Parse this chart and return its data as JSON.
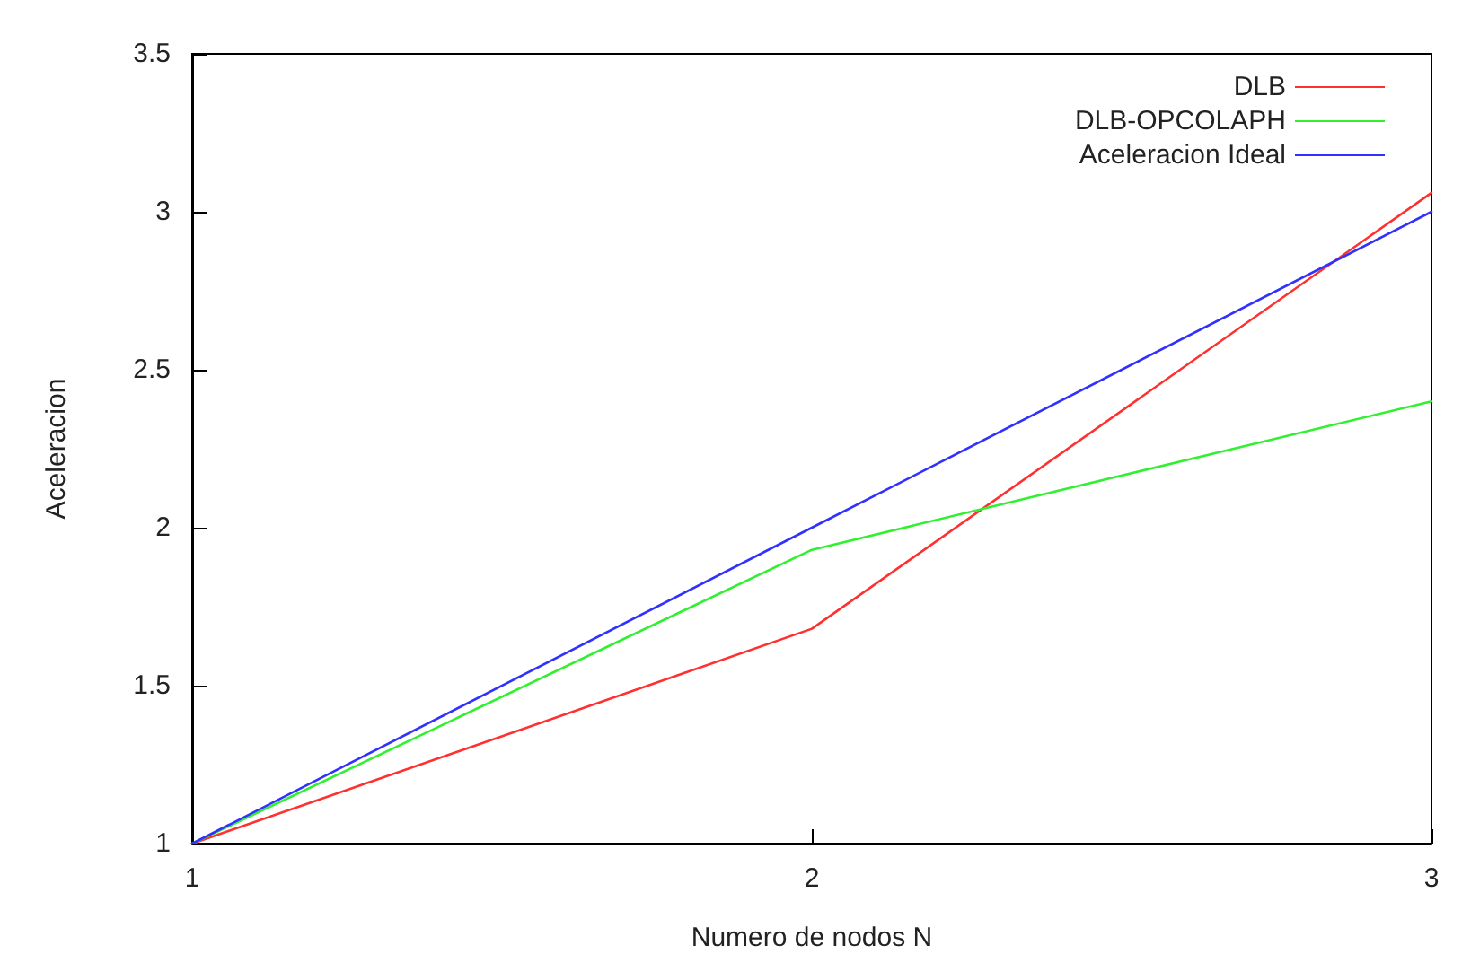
{
  "chart_data": {
    "type": "line",
    "xlabel": "Numero de nodos N",
    "ylabel": "Aceleracion",
    "x": [
      1,
      2,
      3
    ],
    "xlim": [
      1,
      3
    ],
    "xticks": [
      1,
      2,
      3
    ],
    "ylim": [
      1,
      3.5
    ],
    "yticks": [
      1,
      1.5,
      2,
      2.5,
      3,
      3.5
    ],
    "grid": false,
    "legend": "top right",
    "marker": "none",
    "line_style": "solid",
    "series": [
      {
        "name": "DLB",
        "color": "#ff3030",
        "values": [
          1,
          1.68,
          3.06
        ]
      },
      {
        "name": "DLB-OPCOLAPH",
        "color": "#30f030",
        "values": [
          1,
          1.93,
          2.4
        ]
      },
      {
        "name": "Aceleracion Ideal",
        "color": "#3030ff",
        "values": [
          1,
          2,
          3
        ]
      }
    ]
  }
}
